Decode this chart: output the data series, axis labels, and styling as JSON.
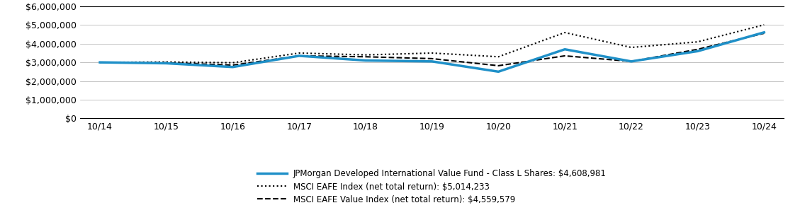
{
  "x_labels": [
    "10/14",
    "10/15",
    "10/16",
    "10/17",
    "10/18",
    "10/19",
    "10/20",
    "10/21",
    "10/22",
    "10/23",
    "10/24"
  ],
  "fund_values": [
    3000000,
    2950000,
    2750000,
    3350000,
    3100000,
    3050000,
    2500000,
    3700000,
    3050000,
    3600000,
    4608981
  ],
  "msci_eafe_values": [
    3000000,
    3020000,
    2980000,
    3500000,
    3400000,
    3500000,
    3300000,
    4600000,
    3800000,
    4100000,
    5014233
  ],
  "msci_value_values": [
    3000000,
    2980000,
    2850000,
    3350000,
    3300000,
    3200000,
    2820000,
    3350000,
    3050000,
    3700000,
    4559579
  ],
  "fund_color": "#1f90c8",
  "msci_eafe_color": "#000000",
  "msci_value_color": "#000000",
  "background_color": "#ffffff",
  "ylim": [
    0,
    6000000
  ],
  "yticks": [
    0,
    1000000,
    2000000,
    3000000,
    4000000,
    5000000,
    6000000
  ],
  "legend_labels": [
    "JPMorgan Developed International Value Fund - Class L Shares: $4,608,981",
    "MSCI EAFE Index (net total return): $5,014,233",
    "MSCI EAFE Value Index (net total return): $4,559,579"
  ]
}
